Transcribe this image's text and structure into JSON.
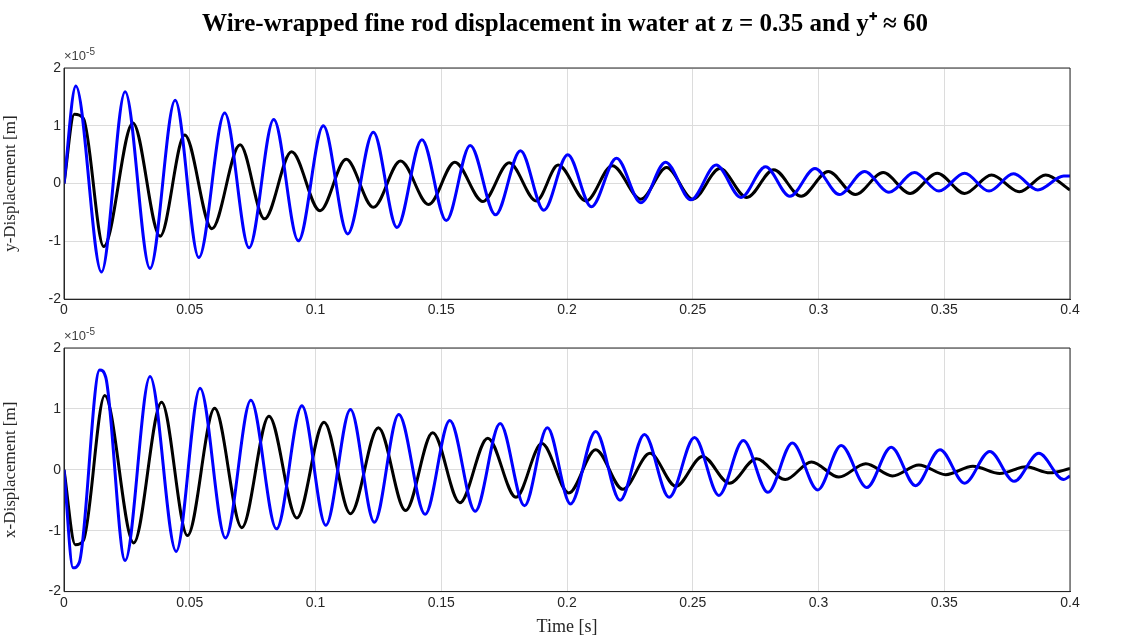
{
  "chart_data": [
    {
      "type": "line",
      "title": "Wire-wrapped fine rod displacement in water at z = 0.35 and y⁺ ≈ 60",
      "ylabel": "y-Displacement [m]",
      "annotations": [
        "×10$^{-5}$"
      ],
      "xlim": [
        0,
        0.4
      ],
      "ylim": [
        -2,
        2
      ],
      "xticks": [
        0,
        0.05,
        0.1,
        0.15,
        0.2,
        0.25,
        0.3,
        0.35,
        0.4
      ],
      "yticks": [
        -2,
        -1,
        0,
        1,
        2
      ],
      "grid": true,
      "marker": "none",
      "legend": false,
      "series": [
        {
          "color": "#0000ff",
          "x": [
            0,
            0.0047,
            0.0149,
            0.0243,
            0.0342,
            0.0442,
            0.0536,
            0.0639,
            0.0736,
            0.0834,
            0.0932,
            0.1031,
            0.1128,
            0.123,
            0.1324,
            0.1423,
            0.152,
            0.1615,
            0.1716,
            0.1815,
            0.1908,
            0.2003,
            0.2097,
            0.2197,
            0.2294,
            0.2392,
            0.2493,
            0.2593,
            0.2692,
            0.2789,
            0.2886,
            0.2986,
            0.3083,
            0.3183,
            0.328,
            0.3382,
            0.3479,
            0.3581,
            0.3678,
            0.3775,
            0.3872,
            0.3975,
            0.4
          ],
          "values": [
            0,
            1.69,
            -1.53,
            1.59,
            -1.47,
            1.44,
            -1.28,
            1.22,
            -1.11,
            1.11,
            -0.99,
            1.0,
            -0.87,
            0.89,
            -0.76,
            0.76,
            -0.64,
            0.66,
            -0.54,
            0.57,
            -0.46,
            0.5,
            -0.4,
            0.44,
            -0.33,
            0.37,
            -0.28,
            0.32,
            -0.24,
            0.29,
            -0.22,
            0.26,
            -0.19,
            0.21,
            -0.15,
            0.19,
            -0.13,
            0.18,
            -0.13,
            0.17,
            -0.11,
            0.13,
            0.13
          ]
        },
        {
          "color": "#000000",
          "x": [
            0,
            0.0041,
            0.0077,
            0.0158,
            0.0274,
            0.0382,
            0.048,
            0.0588,
            0.07,
            0.0797,
            0.0905,
            0.1018,
            0.1122,
            0.123,
            0.1338,
            0.145,
            0.1554,
            0.1666,
            0.177,
            0.1878,
            0.1965,
            0.2076,
            0.218,
            0.2294,
            0.2396,
            0.25,
            0.2608,
            0.2715,
            0.2822,
            0.2931,
            0.3039,
            0.3146,
            0.3257,
            0.3364,
            0.3472,
            0.3581,
            0.3688,
            0.3799,
            0.3903,
            0.4
          ],
          "values": [
            0,
            1.2,
            1.13,
            -1.09,
            1.05,
            -0.91,
            0.84,
            -0.78,
            0.67,
            -0.61,
            0.55,
            -0.47,
            0.42,
            -0.41,
            0.39,
            -0.36,
            0.37,
            -0.31,
            0.36,
            -0.3,
            0.32,
            -0.3,
            0.31,
            -0.27,
            0.28,
            -0.27,
            0.26,
            -0.24,
            0.24,
            -0.22,
            0.21,
            -0.19,
            0.19,
            -0.17,
            0.18,
            -0.17,
            0.15,
            -0.14,
            0.15,
            -0.11
          ]
        }
      ]
    },
    {
      "type": "line",
      "xlabel": "Time [s]",
      "ylabel": "x-Displacement [m]",
      "annotations": [
        "×10$^{-5}$"
      ],
      "xlim": [
        0,
        0.4
      ],
      "ylim": [
        -2,
        2
      ],
      "xticks": [
        0,
        0.05,
        0.1,
        0.15,
        0.2,
        0.25,
        0.3,
        0.35,
        0.4
      ],
      "yticks": [
        -2,
        -1,
        0,
        1,
        2
      ],
      "grid": true,
      "marker": "none",
      "legend": false,
      "series": [
        {
          "color": "#0000ff",
          "x": [
            0,
            0.0036,
            0.0061,
            0.0142,
            0.0166,
            0.0243,
            0.0342,
            0.0446,
            0.0541,
            0.0642,
            0.0743,
            0.0845,
            0.0946,
            0.1041,
            0.1139,
            0.1234,
            0.1331,
            0.1436,
            0.1534,
            0.1635,
            0.1734,
            0.1831,
            0.1922,
            0.2014,
            0.2114,
            0.2211,
            0.2308,
            0.2406,
            0.2507,
            0.2604,
            0.2701,
            0.2799,
            0.2896,
            0.2997,
            0.309,
            0.3192,
            0.3289,
            0.3386,
            0.3483,
            0.3581,
            0.3681,
            0.3778,
            0.3876,
            0.3975,
            0.4
          ],
          "values": [
            0,
            -1.61,
            -1.52,
            1.64,
            1.52,
            -1.49,
            1.53,
            -1.34,
            1.34,
            -1.12,
            1.14,
            -0.97,
            1.05,
            -0.91,
            0.99,
            -0.86,
            0.91,
            -0.73,
            0.81,
            -0.68,
            0.76,
            -0.59,
            0.69,
            -0.56,
            0.63,
            -0.5,
            0.58,
            -0.45,
            0.53,
            -0.42,
            0.48,
            -0.37,
            0.44,
            -0.33,
            0.4,
            -0.29,
            0.37,
            -0.26,
            0.33,
            -0.22,
            0.3,
            -0.19,
            0.27,
            -0.16,
            -0.1
          ]
        },
        {
          "color": "#000000",
          "x": [
            0,
            0.0045,
            0.0077,
            0.0162,
            0.0277,
            0.0388,
            0.0491,
            0.0599,
            0.0707,
            0.0815,
            0.0926,
            0.1034,
            0.1139,
            0.125,
            0.1358,
            0.1466,
            0.1574,
            0.1685,
            0.1797,
            0.19,
            0.2007,
            0.2114,
            0.2222,
            0.233,
            0.2433,
            0.2539,
            0.2646,
            0.2753,
            0.2868,
            0.2972,
            0.3081,
            0.3188,
            0.3294,
            0.3399,
            0.3506,
            0.3614,
            0.3721,
            0.3825,
            0.392,
            0.4
          ],
          "values": [
            0,
            -1.23,
            -1.16,
            1.22,
            -1.2,
            1.11,
            -1.08,
            1.01,
            -0.95,
            0.88,
            -0.79,
            0.78,
            -0.72,
            0.69,
            -0.67,
            0.61,
            -0.54,
            0.52,
            -0.45,
            0.43,
            -0.38,
            0.33,
            -0.32,
            0.27,
            -0.27,
            0.22,
            -0.22,
            0.18,
            -0.16,
            0.13,
            -0.12,
            0.1,
            -0.1,
            0.08,
            -0.08,
            0.06,
            -0.06,
            0.05,
            -0.05,
            0.02
          ]
        }
      ]
    }
  ]
}
